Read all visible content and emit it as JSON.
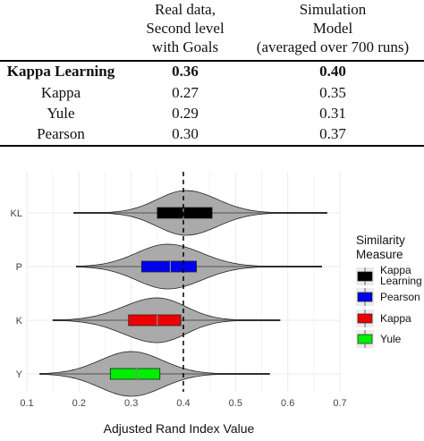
{
  "table": {
    "headers": {
      "col1": [
        "Real data,",
        "Second level",
        "with Goals"
      ],
      "col2": [
        "Simulation",
        "Model",
        "(averaged over 700 runs)"
      ]
    },
    "rows": [
      {
        "name": "Kappa Learning",
        "real": "0.36",
        "sim": "0.40",
        "bold": true
      },
      {
        "name": "Kappa",
        "real": "0.27",
        "sim": "0.35",
        "bold": false
      },
      {
        "name": "Yule",
        "real": "0.29",
        "sim": "0.31",
        "bold": false
      },
      {
        "name": "Pearson",
        "real": "0.30",
        "sim": "0.37",
        "bold": false
      }
    ]
  },
  "chart_data": {
    "type": "violin",
    "xlabel": "Adjusted Rand Index Value",
    "ylabel": "",
    "xlim": [
      0.1,
      0.7
    ],
    "x_ticks": [
      "0.1",
      "0.2",
      "0.3",
      "0.4",
      "0.5",
      "0.6",
      "0.7"
    ],
    "categories": [
      "KL",
      "P",
      "K",
      "Y"
    ],
    "reference_line": {
      "x": 0.4,
      "style": "dashed"
    },
    "grid": true,
    "legend": {
      "title": [
        "Similarity",
        "Measure"
      ],
      "placement": "right",
      "entries": [
        {
          "label": [
            "Kappa",
            "Learning"
          ],
          "color": "#000000"
        },
        {
          "label": [
            "Pearson"
          ],
          "color": "#0000ee"
        },
        {
          "label": [
            "Kappa"
          ],
          "color": "#ee0000"
        },
        {
          "label": [
            "Yule"
          ],
          "color": "#00ee00"
        }
      ]
    },
    "series": [
      {
        "category": "KL",
        "color": "#000000",
        "min": 0.19,
        "q1": 0.35,
        "median": 0.4,
        "q3": 0.455,
        "max": 0.675,
        "mode": 0.405,
        "lower_spread": 0.055,
        "upper_spread": 0.06
      },
      {
        "category": "P",
        "color": "#0000ee",
        "min": 0.195,
        "q1": 0.32,
        "median": 0.375,
        "q3": 0.425,
        "max": 0.665,
        "mode": 0.37,
        "lower_spread": 0.06,
        "upper_spread": 0.065
      },
      {
        "category": "K",
        "color": "#ee0000",
        "min": 0.15,
        "q1": 0.295,
        "median": 0.35,
        "q3": 0.395,
        "max": 0.585,
        "mode": 0.35,
        "lower_spread": 0.065,
        "upper_spread": 0.055
      },
      {
        "category": "Y",
        "color": "#00ee00",
        "min": 0.125,
        "q1": 0.26,
        "median": 0.31,
        "q3": 0.355,
        "max": 0.565,
        "mode": 0.3,
        "lower_spread": 0.06,
        "upper_spread": 0.06
      }
    ]
  }
}
